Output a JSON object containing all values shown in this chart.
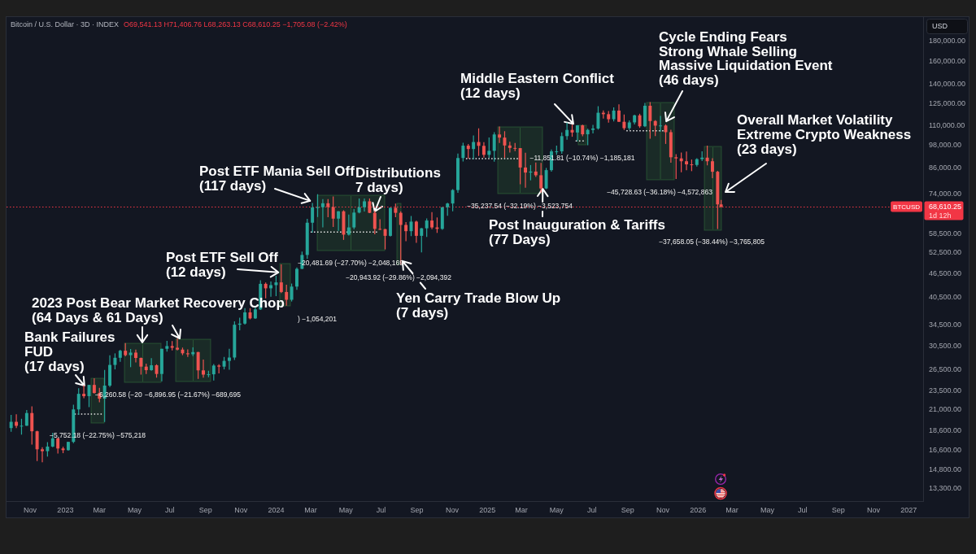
{
  "chart_data": {
    "type": "candlestick",
    "title": "Bitcoin / U.S. Dollar · 3D · INDEX",
    "subtitle": "O69,541.13 H71,406.76 L68,263.13 C68,610.25 −1,705.08 (−2.42%)",
    "ylabel": "USD",
    "x": [
      "2022-09-29",
      "2022-10-08",
      "2022-10-17",
      "2022-10-26",
      "2022-11-04",
      "2022-11-13",
      "2022-11-22",
      "2022-12-01",
      "2022-12-10",
      "2022-12-19",
      "2022-12-28",
      "2023-01-06",
      "2023-01-15",
      "2023-01-24",
      "2023-02-02",
      "2023-02-11",
      "2023-02-20",
      "2023-03-01",
      "2023-03-10",
      "2023-03-19",
      "2023-03-28",
      "2023-04-06",
      "2023-04-15",
      "2023-04-24",
      "2023-05-03",
      "2023-05-12",
      "2023-05-21",
      "2023-05-30",
      "2023-06-08",
      "2023-06-17",
      "2023-06-26",
      "2023-07-05",
      "2023-07-14",
      "2023-07-23",
      "2023-08-01",
      "2023-08-10",
      "2023-08-19",
      "2023-08-28",
      "2023-09-06",
      "2023-09-15",
      "2023-09-24",
      "2023-10-03",
      "2023-10-12",
      "2023-10-21",
      "2023-10-30",
      "2023-11-08",
      "2023-11-17",
      "2023-11-26",
      "2023-12-05",
      "2023-12-14",
      "2023-12-23",
      "2024-01-01",
      "2024-01-10",
      "2024-01-19",
      "2024-01-28",
      "2024-02-06",
      "2024-02-15",
      "2024-02-24",
      "2024-03-04",
      "2024-03-13",
      "2024-03-22",
      "2024-03-31",
      "2024-04-09",
      "2024-04-18",
      "2024-04-27",
      "2024-05-06",
      "2024-05-15",
      "2024-05-24",
      "2024-06-02",
      "2024-06-11",
      "2024-06-20",
      "2024-06-29",
      "2024-07-08",
      "2024-07-17",
      "2024-07-26",
      "2024-08-04",
      "2024-08-13",
      "2024-08-22",
      "2024-08-31",
      "2024-09-09",
      "2024-09-18",
      "2024-09-27",
      "2024-10-06",
      "2024-10-15",
      "2024-10-24",
      "2024-11-02",
      "2024-11-11",
      "2024-11-20",
      "2024-11-29",
      "2024-12-08",
      "2024-12-17",
      "2024-12-26",
      "2025-01-04",
      "2025-01-13",
      "2025-01-22",
      "2025-01-31",
      "2025-02-09",
      "2025-02-18",
      "2025-02-27",
      "2025-03-08",
      "2025-03-17",
      "2025-03-26",
      "2025-04-04",
      "2025-04-13",
      "2025-04-22",
      "2025-05-01",
      "2025-05-10",
      "2025-05-19",
      "2025-05-28",
      "2025-06-06",
      "2025-06-15",
      "2025-06-24",
      "2025-07-03",
      "2025-07-12",
      "2025-07-21",
      "2025-07-30",
      "2025-08-08",
      "2025-08-17",
      "2025-08-26",
      "2025-09-04",
      "2025-09-13",
      "2025-09-22",
      "2025-10-01",
      "2025-10-10",
      "2025-10-19",
      "2025-10-28",
      "2025-11-06",
      "2025-11-15",
      "2025-11-24",
      "2025-12-03",
      "2025-12-12",
      "2025-12-21",
      "2025-12-30",
      "2026-01-08",
      "2026-01-17",
      "2026-01-26",
      "2026-02-04",
      "2026-02-10"
    ],
    "ohlc": [
      [
        18900,
        20400,
        18500,
        19600
      ],
      [
        19600,
        20480,
        18900,
        19150
      ],
      [
        19150,
        19950,
        18190,
        19160
      ],
      [
        19160,
        21000,
        19150,
        20630
      ],
      [
        20630,
        21450,
        17170,
        18550
      ],
      [
        18550,
        18600,
        15600,
        16700
      ],
      [
        16700,
        16900,
        15480,
        16520
      ],
      [
        16520,
        17420,
        16000,
        16970
      ],
      [
        16970,
        18380,
        16900,
        17800
      ],
      [
        17800,
        17850,
        16300,
        16780
      ],
      [
        16780,
        16950,
        16330,
        16620
      ],
      [
        16620,
        17450,
        16560,
        17440
      ],
      [
        17440,
        21650,
        17300,
        21070
      ],
      [
        21070,
        23820,
        20400,
        23070
      ],
      [
        23070,
        24250,
        22500,
        22760
      ],
      [
        22760,
        24300,
        21350,
        24300
      ],
      [
        24300,
        25250,
        23100,
        23180
      ],
      [
        23180,
        23900,
        21970,
        22430
      ],
      [
        22430,
        26500,
        19570,
        24200
      ],
      [
        24200,
        28870,
        24000,
        27300
      ],
      [
        27300,
        29200,
        26600,
        28460
      ],
      [
        28460,
        29800,
        27800,
        29650
      ],
      [
        29650,
        31000,
        28700,
        28900
      ],
      [
        28900,
        29950,
        26950,
        29330
      ],
      [
        29330,
        29850,
        27700,
        28430
      ],
      [
        28430,
        28500,
        25800,
        27030
      ],
      [
        27030,
        27500,
        25900,
        26480
      ],
      [
        26480,
        28400,
        26400,
        27250
      ],
      [
        27250,
        27400,
        25350,
        25900
      ],
      [
        25900,
        30000,
        24800,
        29990
      ],
      [
        29990,
        31400,
        29500,
        30470
      ],
      [
        30470,
        31380,
        29700,
        30170
      ],
      [
        30170,
        31810,
        29700,
        29850
      ],
      [
        29850,
        30200,
        28900,
        29210
      ],
      [
        29210,
        29900,
        28600,
        29050
      ],
      [
        29050,
        30250,
        28750,
        29420
      ],
      [
        29420,
        29450,
        25170,
        26450
      ],
      [
        26450,
        28150,
        25350,
        25800
      ],
      [
        25800,
        26400,
        25400,
        25850
      ],
      [
        25850,
        27450,
        24930,
        27200
      ],
      [
        27200,
        27400,
        26000,
        27030
      ],
      [
        27030,
        28600,
        26600,
        27950
      ],
      [
        27950,
        30000,
        26550,
        28500
      ],
      [
        28500,
        35200,
        28100,
        34500
      ],
      [
        34500,
        35950,
        33400,
        34730
      ],
      [
        34730,
        38000,
        34550,
        37070
      ],
      [
        37070,
        37980,
        35600,
        35800
      ],
      [
        35800,
        38400,
        35700,
        37720
      ],
      [
        37720,
        44700,
        37600,
        43780
      ],
      [
        43780,
        44100,
        40250,
        42650
      ],
      [
        42650,
        44400,
        40600,
        43450
      ],
      [
        43450,
        45900,
        40750,
        44150
      ],
      [
        44150,
        49050,
        41500,
        41750
      ],
      [
        41750,
        43570,
        38550,
        39900
      ],
      [
        39900,
        43850,
        39500,
        43080
      ],
      [
        43080,
        48170,
        42280,
        47770
      ],
      [
        47770,
        52800,
        47700,
        51800
      ],
      [
        51800,
        63900,
        50600,
        62500
      ],
      [
        62500,
        70100,
        59000,
        68300
      ],
      [
        68300,
        73800,
        64600,
        68400
      ],
      [
        68400,
        71700,
        60800,
        70000
      ],
      [
        70000,
        71750,
        64500,
        68500
      ],
      [
        68500,
        72800,
        61000,
        64000
      ],
      [
        64000,
        66900,
        59600,
        66800
      ],
      [
        66800,
        67200,
        56550,
        58300
      ],
      [
        58300,
        65500,
        58000,
        60800
      ],
      [
        60800,
        67700,
        60200,
        66300
      ],
      [
        66300,
        71950,
        66000,
        68400
      ],
      [
        68400,
        71950,
        66700,
        70800
      ],
      [
        70800,
        71950,
        66050,
        66200
      ],
      [
        66200,
        67000,
        58400,
        60300
      ],
      [
        60300,
        63800,
        59900,
        60200
      ],
      [
        60200,
        60300,
        53500,
        57900
      ],
      [
        57900,
        68300,
        57700,
        68150
      ],
      [
        68150,
        69900,
        64500,
        66200
      ],
      [
        66200,
        66800,
        49050,
        61700
      ],
      [
        61700,
        62700,
        56100,
        59500
      ],
      [
        59500,
        65000,
        57800,
        62900
      ],
      [
        62900,
        63250,
        55600,
        57900
      ],
      [
        57900,
        60600,
        52550,
        60500
      ],
      [
        60500,
        64100,
        57500,
        63300
      ],
      [
        63300,
        66500,
        60200,
        60800
      ],
      [
        60800,
        64450,
        58900,
        60300
      ],
      [
        60300,
        68400,
        60000,
        68400
      ],
      [
        68400,
        70200,
        65100,
        69900
      ],
      [
        69900,
        76000,
        66800,
        75600
      ],
      [
        75600,
        93480,
        74400,
        91100
      ],
      [
        91100,
        99600,
        89300,
        97900
      ],
      [
        97900,
        98900,
        90800,
        96000
      ],
      [
        96000,
        103900,
        90500,
        100000
      ],
      [
        100000,
        108300,
        92200,
        97800
      ],
      [
        97800,
        99900,
        91300,
        92800
      ],
      [
        92800,
        102700,
        91200,
        95000
      ],
      [
        95000,
        105900,
        89200,
        104500
      ],
      [
        104500,
        109400,
        99500,
        102600
      ],
      [
        102600,
        106500,
        91200,
        98000
      ],
      [
        98000,
        100100,
        94100,
        96600
      ],
      [
        96600,
        99500,
        94800,
        96500
      ],
      [
        96500,
        96500,
        78200,
        86200
      ],
      [
        86200,
        94000,
        76600,
        83700
      ],
      [
        83700,
        87450,
        80000,
        84200
      ],
      [
        84200,
        88800,
        81600,
        82400
      ],
      [
        82400,
        88500,
        74500,
        76300
      ],
      [
        76300,
        86000,
        76000,
        84900
      ],
      [
        84900,
        95800,
        84100,
        94700
      ],
      [
        94700,
        97900,
        92800,
        94700
      ],
      [
        94700,
        105800,
        93400,
        103500
      ],
      [
        103500,
        111900,
        101400,
        107300
      ],
      [
        107300,
        110700,
        103100,
        105700
      ],
      [
        105700,
        110400,
        100400,
        110200
      ],
      [
        110200,
        110600,
        103400,
        104600
      ],
      [
        104600,
        108100,
        98200,
        107300
      ],
      [
        107300,
        110500,
        105100,
        108200
      ],
      [
        108200,
        123200,
        107500,
        118600
      ],
      [
        118600,
        120200,
        114700,
        117600
      ],
      [
        117600,
        119800,
        112000,
        114200
      ],
      [
        114200,
        122300,
        112700,
        120100
      ],
      [
        120100,
        124500,
        112400,
        112500
      ],
      [
        112500,
        117400,
        107300,
        108400
      ],
      [
        108400,
        113400,
        107300,
        112100
      ],
      [
        112100,
        117300,
        110800,
        116800
      ],
      [
        116800,
        117900,
        108600,
        109600
      ],
      [
        109600,
        125600,
        109100,
        123500
      ],
      [
        123500,
        126200,
        102000,
        113000
      ],
      [
        113000,
        113600,
        103500,
        110000
      ],
      [
        110000,
        116400,
        106300,
        110100
      ],
      [
        110100,
        110800,
        98900,
        105900
      ],
      [
        105900,
        107400,
        88600,
        91500
      ],
      [
        91500,
        93200,
        80600,
        90900
      ],
      [
        90900,
        94100,
        83800,
        89400
      ],
      [
        89400,
        94600,
        84800,
        87800
      ],
      [
        87800,
        90300,
        84400,
        87500
      ],
      [
        87500,
        91000,
        86700,
        90500
      ],
      [
        90500,
        94700,
        89500,
        91300
      ],
      [
        91300,
        97900,
        87300,
        89400
      ],
      [
        89400,
        91000,
        81000,
        84100
      ],
      [
        84100,
        84500,
        60270,
        69540
      ],
      [
        69541.13,
        71406.76,
        68263.13,
        68610.25
      ]
    ],
    "series": [
      {
        "type": "line",
        "x": [
          "2023-01-17",
          "2023-03-05"
        ],
        "values": [
          20500,
          20500
        ],
        "color": "#e8e8e8",
        "line_style": "dotted"
      },
      {
        "type": "line",
        "x": [
          "2024-03-01",
          "2024-06-24"
        ],
        "values": [
          59200,
          59200
        ],
        "color": "#e8e8e8",
        "line_style": "dotted"
      },
      {
        "type": "line",
        "x": [
          "2024-11-25",
          "2025-02-23"
        ],
        "values": [
          90800,
          90800
        ],
        "color": "#e8e8e8",
        "line_style": "dotted"
      },
      {
        "type": "line",
        "x": [
          "2025-06-03",
          "2025-06-17"
        ],
        "values": [
          100600,
          100600
        ],
        "color": "#e8e8e8",
        "line_style": "dotted"
      },
      {
        "type": "line",
        "x": [
          "2025-08-30",
          "2025-11-02"
        ],
        "values": [
          106800,
          106800
        ],
        "color": "#e8e8e8",
        "line_style": "dotted"
      }
    ],
    "xlim": [
      "2022-09-21",
      "2027-01-26"
    ],
    "xticks": [
      {
        "value": "2022-11-01",
        "label": "Nov"
      },
      {
        "value": "2023-01-01",
        "label": "2023"
      },
      {
        "value": "2023-03-01",
        "label": "Mar"
      },
      {
        "value": "2023-05-01",
        "label": "May"
      },
      {
        "value": "2023-07-01",
        "label": "Jul"
      },
      {
        "value": "2023-09-01",
        "label": "Sep"
      },
      {
        "value": "2023-11-01",
        "label": "Nov"
      },
      {
        "value": "2024-01-01",
        "label": "2024"
      },
      {
        "value": "2024-03-01",
        "label": "Mar"
      },
      {
        "value": "2024-05-01",
        "label": "May"
      },
      {
        "value": "2024-07-01",
        "label": "Jul"
      },
      {
        "value": "2024-09-01",
        "label": "Sep"
      },
      {
        "value": "2024-11-01",
        "label": "Nov"
      },
      {
        "value": "2025-01-01",
        "label": "2025"
      },
      {
        "value": "2025-03-01",
        "label": "Mar"
      },
      {
        "value": "2025-05-01",
        "label": "May"
      },
      {
        "value": "2025-07-01",
        "label": "Jul"
      },
      {
        "value": "2025-09-01",
        "label": "Sep"
      },
      {
        "value": "2025-11-01",
        "label": "Nov"
      },
      {
        "value": "2026-01-01",
        "label": "2026"
      },
      {
        "value": "2026-03-01",
        "label": "Mar"
      },
      {
        "value": "2026-05-01",
        "label": "May"
      },
      {
        "value": "2026-07-01",
        "label": "Jul"
      },
      {
        "value": "2026-09-01",
        "label": "Sep"
      },
      {
        "value": "2026-11-01",
        "label": "Nov"
      },
      {
        "value": "2027-01-01",
        "label": "2027"
      }
    ],
    "ylim": [
      12350,
      208000
    ],
    "yticks": [
      {
        "value": 13300,
        "label": "13,300.00"
      },
      {
        "value": 14800,
        "label": "14,800.00"
      },
      {
        "value": 16600,
        "label": "16,600.00"
      },
      {
        "value": 18600,
        "label": "18,600.00"
      },
      {
        "value": 21000,
        "label": "21,000.00"
      },
      {
        "value": 23500,
        "label": "23,500.00"
      },
      {
        "value": 26500,
        "label": "26,500.00"
      },
      {
        "value": 30500,
        "label": "30,500.00"
      },
      {
        "value": 34500,
        "label": "34,500.00"
      },
      {
        "value": 40500,
        "label": "40,500.00"
      },
      {
        "value": 46500,
        "label": "46,500.00"
      },
      {
        "value": 52500,
        "label": "52,500.00"
      },
      {
        "value": 58500,
        "label": "58,500.00"
      },
      {
        "value": 68610.25,
        "label": "68,610.25"
      },
      {
        "value": 74000,
        "label": "74,000.00"
      },
      {
        "value": 86000,
        "label": "86,000.00"
      },
      {
        "value": 98000,
        "label": "98,000.00"
      },
      {
        "value": 110000,
        "label": "110,000.00"
      },
      {
        "value": 125000,
        "label": "125,000.00"
      },
      {
        "value": 140000,
        "label": "140,000.00"
      },
      {
        "value": 160000,
        "label": "160,000.00"
      },
      {
        "value": 180000,
        "label": "180,000.00"
      }
    ],
    "log": "y",
    "ref_lines": [
      {
        "axis": "y",
        "value": 68610.25,
        "label": "BTCUSD",
        "color": "#f23645",
        "line_style": "dotted"
      }
    ],
    "annotations": [
      {
        "text": "Bank Failures\nFUD\n(17 days)",
        "x": "2023-02-03",
        "y": 24200
      },
      "−5,752.18 (−22.75%) −575,218",
      "2023 Post Bear Market Recovery Chop\n(64 Days & 61 Days)",
      "−6,260.58 (−20",
      "−6,896.95 (−21.67%) −689,695",
      {
        "text": "Post ETF Sell Off\n(12 days)",
        "x": "2024-01-05",
        "y": 46800
      },
      ") −1,054,201",
      {
        "text": "Post ETF Mania Sell Off\n(117 days)",
        "x": "2024-02-29",
        "y": 71000
      },
      "−20,481.69 (−27.70%) −2,048,169",
      {
        "text": "Distributions\n7 days)",
        "x": "2024-06-20",
        "y": 66700
      },
      {
        "text": "Yen Carry Trade Blow Up\n(7 days)",
        "x": "2024-08-07",
        "y": 50000
      },
      "−20,943.92 (−29.86%) −2,094,392",
      {
        "text": "Post Inauguration & Tariffs\n(77 Days)",
        "x": "2025-04-07",
        "y": 76200
      },
      "−35,237.54 (−32.19%) −3,523,754",
      {
        "text": "Middle Eastern Conflict\n(12 days)",
        "x": "2025-05-30",
        "y": 111200
      },
      "−11,851.81 (−10.74%) −1,185,181",
      {
        "text": "Cycle Ending Fears\nStrong Whale Selling\nMassive Liquidation Event\n(46 days)",
        "x": "2025-11-07",
        "y": 112800
      },
      "−45,728.63 (−36.18%) −4,572,863",
      "Overall Market Volatility\nExtreme Crypto Weakness\n(23 days)",
      "−37,658.05 (−38.44%) −3,765,805",
      "1d 12h"
    ]
  }
}
